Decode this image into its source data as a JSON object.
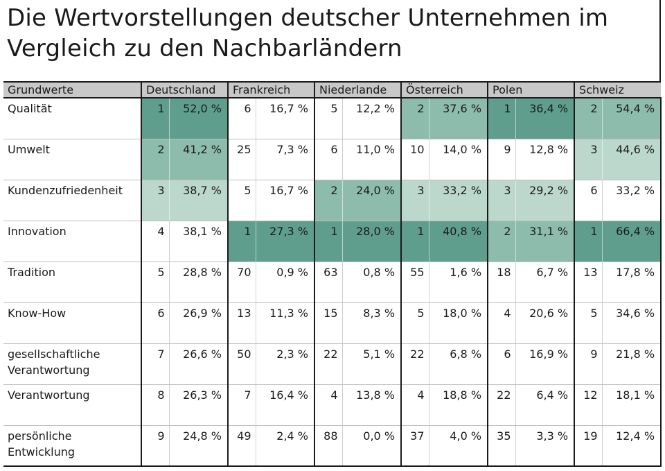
{
  "title": "Die Wertvorstellungen deutscher Unternehmen im Vergleich zu den Nachbarländern",
  "colors": {
    "shade_1": "#5f9e8c",
    "shade_2": "#8dbcad",
    "shade_3": "#bcd8cd",
    "header_bg": "#c8c8c8"
  },
  "table": {
    "first_header": "Grundwerte",
    "countries": [
      "Deutschland",
      "Frankreich",
      "Niederlande",
      "Österreich",
      "Polen",
      "Schweiz"
    ],
    "rows": [
      {
        "label": "Qualität",
        "cells": [
          {
            "rank": "1",
            "pct": "52,0 %",
            "shade": 1
          },
          {
            "rank": "6",
            "pct": "16,7 %",
            "shade": 0
          },
          {
            "rank": "5",
            "pct": "12,2 %",
            "shade": 0
          },
          {
            "rank": "2",
            "pct": "37,6 %",
            "shade": 2
          },
          {
            "rank": "1",
            "pct": "36,4 %",
            "shade": 1
          },
          {
            "rank": "2",
            "pct": "54,4 %",
            "shade": 2
          }
        ]
      },
      {
        "label": "Umwelt",
        "cells": [
          {
            "rank": "2",
            "pct": "41,2 %",
            "shade": 2
          },
          {
            "rank": "25",
            "pct": "7,3 %",
            "shade": 0
          },
          {
            "rank": "6",
            "pct": "11,0 %",
            "shade": 0
          },
          {
            "rank": "10",
            "pct": "14,0 %",
            "shade": 0
          },
          {
            "rank": "9",
            "pct": "12,8 %",
            "shade": 0
          },
          {
            "rank": "3",
            "pct": "44,6 %",
            "shade": 3
          }
        ]
      },
      {
        "label": "Kundenzufriedenheit",
        "cells": [
          {
            "rank": "3",
            "pct": "38,7 %",
            "shade": 3
          },
          {
            "rank": "5",
            "pct": "16,7 %",
            "shade": 0
          },
          {
            "rank": "2",
            "pct": "24,0 %",
            "shade": 2
          },
          {
            "rank": "3",
            "pct": "33,2 %",
            "shade": 3
          },
          {
            "rank": "3",
            "pct": "29,2 %",
            "shade": 3
          },
          {
            "rank": "6",
            "pct": "33,2 %",
            "shade": 0
          }
        ]
      },
      {
        "label": "Innovation",
        "cells": [
          {
            "rank": "4",
            "pct": "38,1 %",
            "shade": 0
          },
          {
            "rank": "1",
            "pct": "27,3 %",
            "shade": 1
          },
          {
            "rank": "1",
            "pct": "28,0 %",
            "shade": 1
          },
          {
            "rank": "1",
            "pct": "40,8 %",
            "shade": 1
          },
          {
            "rank": "2",
            "pct": "31,1 %",
            "shade": 2
          },
          {
            "rank": "1",
            "pct": "66,4 %",
            "shade": 1
          }
        ]
      },
      {
        "label": "Tradition",
        "cells": [
          {
            "rank": "5",
            "pct": "28,8 %",
            "shade": 0
          },
          {
            "rank": "70",
            "pct": "0,9 %",
            "shade": 0
          },
          {
            "rank": "63",
            "pct": "0,8 %",
            "shade": 0
          },
          {
            "rank": "55",
            "pct": "1,6 %",
            "shade": 0
          },
          {
            "rank": "18",
            "pct": "6,7 %",
            "shade": 0
          },
          {
            "rank": "13",
            "pct": "17,8 %",
            "shade": 0
          }
        ]
      },
      {
        "label": "Know-How",
        "cells": [
          {
            "rank": "6",
            "pct": "26,9 %",
            "shade": 0
          },
          {
            "rank": "13",
            "pct": "11,3 %",
            "shade": 0
          },
          {
            "rank": "15",
            "pct": "8,3 %",
            "shade": 0
          },
          {
            "rank": "5",
            "pct": "18,0 %",
            "shade": 0
          },
          {
            "rank": "4",
            "pct": "20,6 %",
            "shade": 0
          },
          {
            "rank": "5",
            "pct": "34,6 %",
            "shade": 0
          }
        ]
      },
      {
        "label": "gesellschaftliche Verantwortung",
        "cells": [
          {
            "rank": "7",
            "pct": "26,6 %",
            "shade": 0
          },
          {
            "rank": "50",
            "pct": "2,3 %",
            "shade": 0
          },
          {
            "rank": "22",
            "pct": "5,1 %",
            "shade": 0
          },
          {
            "rank": "22",
            "pct": "6,8 %",
            "shade": 0
          },
          {
            "rank": "6",
            "pct": "16,9 %",
            "shade": 0
          },
          {
            "rank": "9",
            "pct": "21,8 %",
            "shade": 0
          }
        ]
      },
      {
        "label": "Verantwortung",
        "cells": [
          {
            "rank": "8",
            "pct": "26,3 %",
            "shade": 0
          },
          {
            "rank": "7",
            "pct": "16,4 %",
            "shade": 0
          },
          {
            "rank": "4",
            "pct": "13,8 %",
            "shade": 0
          },
          {
            "rank": "4",
            "pct": "18,8 %",
            "shade": 0
          },
          {
            "rank": "22",
            "pct": "6,4 %",
            "shade": 0
          },
          {
            "rank": "12",
            "pct": "18,1 %",
            "shade": 0
          }
        ]
      },
      {
        "label": "persönliche Entwicklung",
        "cells": [
          {
            "rank": "9",
            "pct": "24,8 %",
            "shade": 0
          },
          {
            "rank": "49",
            "pct": "2,4 %",
            "shade": 0
          },
          {
            "rank": "88",
            "pct": "0,0 %",
            "shade": 0
          },
          {
            "rank": "37",
            "pct": "4,0 %",
            "shade": 0
          },
          {
            "rank": "35",
            "pct": "3,3 %",
            "shade": 0
          },
          {
            "rank": "19",
            "pct": "12,4 %",
            "shade": 0
          }
        ]
      }
    ]
  }
}
